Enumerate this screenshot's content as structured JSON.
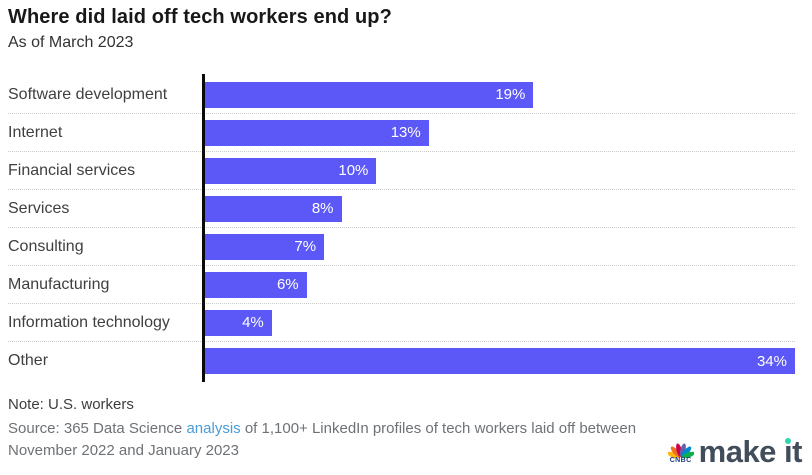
{
  "header": {
    "title": "Where did laid off tech workers end up?",
    "subtitle": "As of March 2023"
  },
  "chart_data": {
    "type": "bar",
    "orientation": "horizontal",
    "title": "Where did laid off tech workers end up?",
    "subtitle": "As of March 2023",
    "categories": [
      "Software development",
      "Internet",
      "Financial services",
      "Services",
      "Consulting",
      "Manufacturing",
      "Information technology",
      "Other"
    ],
    "values": [
      19,
      13,
      10,
      8,
      7,
      6,
      4,
      34
    ],
    "value_labels": [
      "19%",
      "13%",
      "10%",
      "8%",
      "7%",
      "6%",
      "4%",
      "34%"
    ],
    "xlim": [
      0,
      34
    ],
    "bar_color": "#5c58f8",
    "axis_color": "#0a0a0a",
    "separator_style": "dotted",
    "separator_color": "#c9c9c9",
    "legend": "none",
    "grid": "row separators only"
  },
  "footer": {
    "note": "Note: U.S. workers",
    "source_prefix": "Source: 365 Data Science ",
    "source_link": "analysis",
    "source_suffix": " of 1,100+ LinkedIn profiles of tech workers laid off between November 2022 and January 2023",
    "link_color": "#4a9cd8"
  },
  "branding": {
    "network": "CNBC",
    "wordmark": "make it",
    "parts": {
      "pre": "make ",
      "i": "ı",
      "post": "t"
    },
    "peacock_colors": [
      "#fcb711",
      "#f37021",
      "#cc004c",
      "#6460aa",
      "#0089d0",
      "#0db14b"
    ],
    "dot_color": "#2ed5ae"
  }
}
